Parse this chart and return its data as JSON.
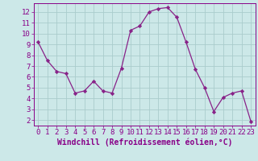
{
  "x": [
    0,
    1,
    2,
    3,
    4,
    5,
    6,
    7,
    8,
    9,
    10,
    11,
    12,
    13,
    14,
    15,
    16,
    17,
    18,
    19,
    20,
    21,
    22,
    23
  ],
  "y": [
    9.2,
    7.5,
    6.5,
    6.3,
    4.5,
    4.7,
    5.6,
    4.7,
    4.5,
    6.8,
    10.3,
    10.7,
    12.0,
    12.3,
    12.4,
    11.5,
    9.2,
    6.7,
    5.0,
    2.8,
    4.1,
    4.5,
    4.7,
    1.9
  ],
  "line_color": "#882288",
  "marker_color": "#882288",
  "bg_color": "#cce8e8",
  "grid_color": "#aacccc",
  "xlabel": "Windchill (Refroidissement éolien,°C)",
  "xlim": [
    -0.5,
    23.5
  ],
  "ylim": [
    1.5,
    12.8
  ],
  "yticks": [
    2,
    3,
    4,
    5,
    6,
    7,
    8,
    9,
    10,
    11,
    12
  ],
  "xticks": [
    0,
    1,
    2,
    3,
    4,
    5,
    6,
    7,
    8,
    9,
    10,
    11,
    12,
    13,
    14,
    15,
    16,
    17,
    18,
    19,
    20,
    21,
    22,
    23
  ],
  "tick_label_fontsize": 6.5,
  "xlabel_fontsize": 7.0,
  "label_color": "#880088"
}
